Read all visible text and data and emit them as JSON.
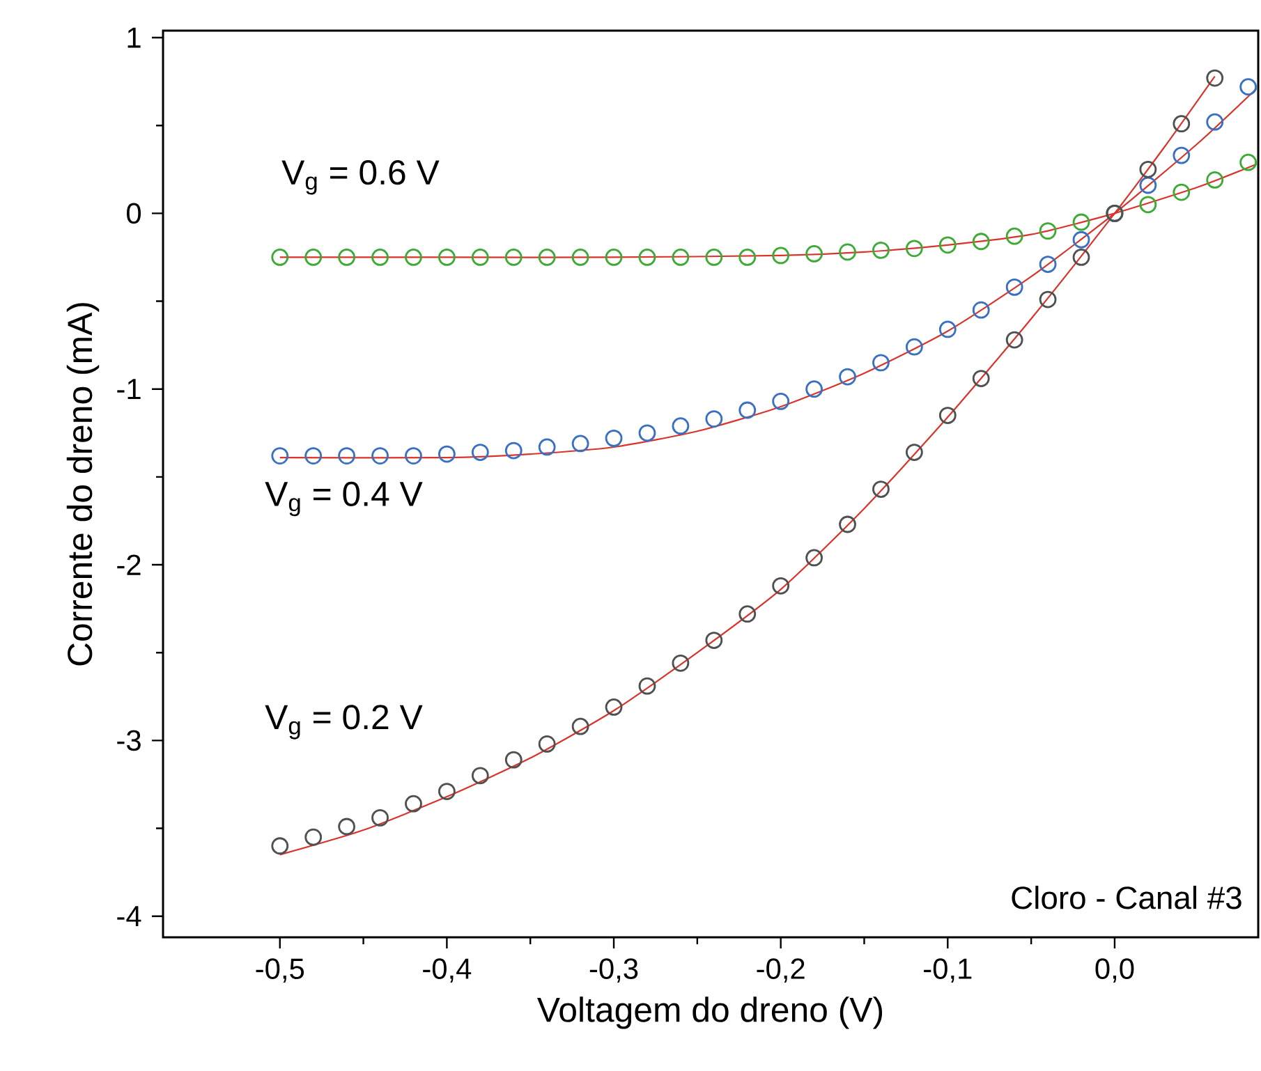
{
  "chart_data": {
    "type": "scatter",
    "xlabel": "Voltagem do dreno (V)",
    "ylabel": "Corrente do dreno (mA)",
    "xlim": [
      -0.57,
      0.086
    ],
    "ylim": [
      -4.12,
      1.04
    ],
    "xticks": [
      {
        "value": -0.5,
        "label": "-0,5"
      },
      {
        "value": -0.4,
        "label": "-0,4"
      },
      {
        "value": -0.3,
        "label": "-0,3"
      },
      {
        "value": -0.2,
        "label": "-0,2"
      },
      {
        "value": -0.1,
        "label": "-0,1"
      },
      {
        "value": 0.0,
        "label": "0,0"
      }
    ],
    "yticks": [
      -4,
      -3,
      -2,
      -1,
      0,
      1
    ],
    "marker": "circle",
    "annotations": [
      "Cloro - Canal #3"
    ],
    "series": [
      {
        "name": "V$_{g}$ = 0.6 V",
        "color": "#3daa35",
        "x": [
          -0.5,
          -0.48,
          -0.46,
          -0.44,
          -0.42,
          -0.4,
          -0.38,
          -0.36,
          -0.34,
          -0.32,
          -0.3,
          -0.28,
          -0.26,
          -0.24,
          -0.22,
          -0.2,
          -0.18,
          -0.16,
          -0.14,
          -0.12,
          -0.1,
          -0.08,
          -0.06,
          -0.04,
          -0.02,
          0.0,
          0.02,
          0.04,
          0.06,
          0.08
        ],
        "values": [
          -0.25,
          -0.25,
          -0.25,
          -0.25,
          -0.25,
          -0.25,
          -0.25,
          -0.25,
          -0.25,
          -0.25,
          -0.25,
          -0.25,
          -0.25,
          -0.25,
          -0.25,
          -0.24,
          -0.23,
          -0.22,
          -0.21,
          -0.2,
          -0.18,
          -0.16,
          -0.13,
          -0.1,
          -0.05,
          0.0,
          0.05,
          0.12,
          0.19,
          0.29
        ]
      },
      {
        "name": "V$_{g}$ = 0.4 V",
        "color": "#3a6fc4",
        "x": [
          -0.5,
          -0.48,
          -0.46,
          -0.44,
          -0.42,
          -0.4,
          -0.38,
          -0.36,
          -0.34,
          -0.32,
          -0.3,
          -0.28,
          -0.26,
          -0.24,
          -0.22,
          -0.2,
          -0.18,
          -0.16,
          -0.14,
          -0.12,
          -0.1,
          -0.08,
          -0.06,
          -0.04,
          -0.02,
          0.0,
          0.02,
          0.04,
          0.06,
          0.08
        ],
        "values": [
          -1.38,
          -1.38,
          -1.38,
          -1.38,
          -1.38,
          -1.37,
          -1.36,
          -1.35,
          -1.33,
          -1.31,
          -1.28,
          -1.25,
          -1.21,
          -1.17,
          -1.12,
          -1.07,
          -1.0,
          -0.93,
          -0.85,
          -0.76,
          -0.66,
          -0.55,
          -0.42,
          -0.29,
          -0.15,
          0.0,
          0.16,
          0.33,
          0.52,
          0.72
        ]
      },
      {
        "name": "V$_{g}$ = 0.2 V",
        "color": "#505050",
        "x": [
          -0.5,
          -0.48,
          -0.46,
          -0.44,
          -0.42,
          -0.4,
          -0.38,
          -0.36,
          -0.34,
          -0.32,
          -0.3,
          -0.28,
          -0.26,
          -0.24,
          -0.22,
          -0.2,
          -0.18,
          -0.16,
          -0.14,
          -0.12,
          -0.1,
          -0.08,
          -0.06,
          -0.04,
          -0.02,
          0.0,
          0.02,
          0.04,
          0.06
        ],
        "values": [
          -3.6,
          -3.55,
          -3.49,
          -3.44,
          -3.36,
          -3.29,
          -3.2,
          -3.11,
          -3.02,
          -2.92,
          -2.81,
          -2.69,
          -2.56,
          -2.43,
          -2.28,
          -2.12,
          -1.96,
          -1.77,
          -1.57,
          -1.36,
          -1.15,
          -0.94,
          -0.72,
          -0.49,
          -0.25,
          0.0,
          0.25,
          0.51,
          0.77
        ]
      },
      {
        "type": "line",
        "marker": "none",
        "color": "#d9342b",
        "x": [
          -0.5,
          -0.4,
          -0.3,
          -0.2,
          -0.15,
          -0.1,
          -0.05,
          0.0,
          0.05,
          0.085
        ],
        "values": [
          -0.25,
          -0.25,
          -0.25,
          -0.24,
          -0.22,
          -0.18,
          -0.12,
          0.0,
          0.15,
          0.28
        ]
      },
      {
        "type": "line",
        "marker": "none",
        "color": "#d9342b",
        "x": [
          -0.5,
          -0.4,
          -0.35,
          -0.3,
          -0.25,
          -0.2,
          -0.15,
          -0.1,
          -0.05,
          0.0,
          0.05,
          0.085
        ],
        "values": [
          -1.39,
          -1.39,
          -1.37,
          -1.33,
          -1.24,
          -1.1,
          -0.91,
          -0.67,
          -0.36,
          0.0,
          0.4,
          0.71
        ]
      },
      {
        "type": "line",
        "marker": "none",
        "color": "#d9342b",
        "x": [
          -0.5,
          -0.45,
          -0.4,
          -0.35,
          -0.3,
          -0.25,
          -0.2,
          -0.15,
          -0.1,
          -0.05,
          0.0,
          0.03,
          0.06
        ],
        "values": [
          -3.65,
          -3.51,
          -3.32,
          -3.1,
          -2.83,
          -2.5,
          -2.14,
          -1.68,
          -1.16,
          -0.6,
          0.0,
          0.38,
          0.78
        ]
      }
    ]
  }
}
